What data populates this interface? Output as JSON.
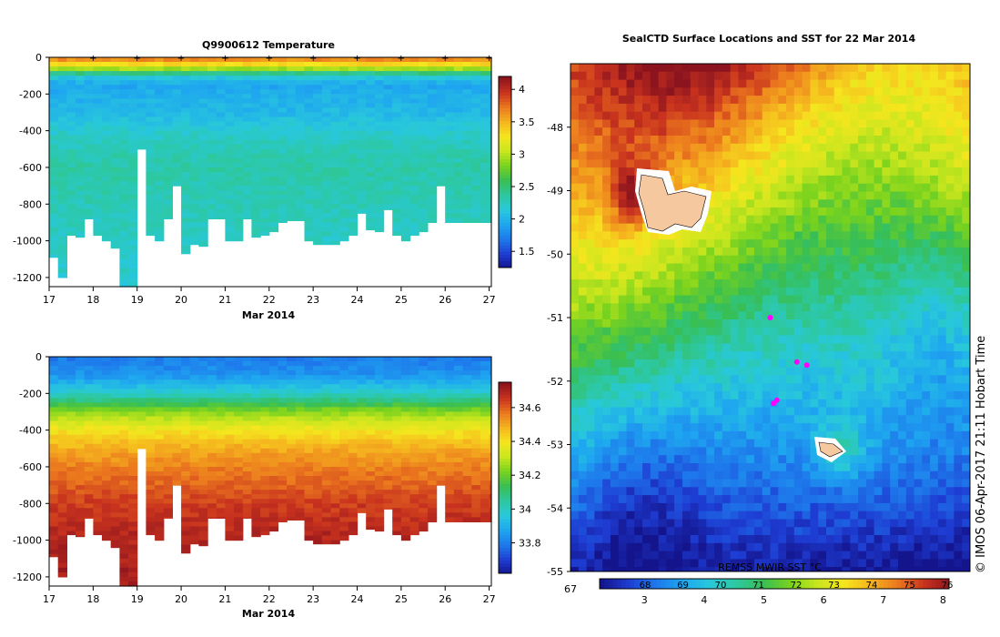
{
  "colors": {
    "cmap": [
      "#14148c",
      "#1e3cd2",
      "#1e78eb",
      "#1ea5f0",
      "#28c8dc",
      "#2dc8a0",
      "#37be55",
      "#78d21e",
      "#c8e61e",
      "#f5e61e",
      "#f5b41e",
      "#eb781e",
      "#c8321e",
      "#8c141e"
    ],
    "land": "#f5c8a0",
    "track": "#ff00ff"
  },
  "chart_data": [
    {
      "type": "heatmap",
      "title": "Q9900612  Temperature",
      "xlabel": "Mar 2014",
      "ylabel": "",
      "x_ticks": [
        "17",
        "18",
        "19",
        "20",
        "21",
        "22",
        "23",
        "24",
        "25",
        "26",
        "27"
      ],
      "xlim": [
        17,
        27.05
      ],
      "y_ticks": [
        "0",
        "-200",
        "-400",
        "-600",
        "-800",
        "-1000",
        "-1200"
      ],
      "ylim": [
        -1250,
        0
      ],
      "colorbar": {
        "min": 1.25,
        "max": 4.2,
        "ticks": [
          "1.5",
          "2",
          "2.5",
          "3",
          "3.5",
          "4"
        ],
        "tick_values": [
          1.5,
          2,
          2.5,
          3,
          3.5,
          4
        ]
      },
      "profile_day": [
        17.0,
        17.2,
        17.4,
        17.6,
        17.8,
        18.0,
        18.2,
        18.4,
        18.6,
        18.8,
        19.0,
        19.2,
        19.4,
        19.6,
        19.8,
        20.0,
        20.2,
        20.4,
        20.6,
        20.8,
        21.0,
        21.2,
        21.4,
        21.6,
        21.8,
        22.0,
        22.2,
        22.4,
        22.6,
        22.8,
        23.0,
        23.2,
        23.4,
        23.6,
        23.8,
        24.0,
        24.2,
        24.4,
        24.6,
        24.8,
        25.0,
        25.2,
        25.4,
        25.6,
        25.8,
        26.0,
        26.2,
        26.4,
        26.6,
        26.8,
        27.0
      ],
      "profile_max_depth": [
        1090,
        1200,
        970,
        980,
        880,
        970,
        1000,
        1040,
        1250,
        1250,
        500,
        970,
        1000,
        880,
        700,
        1070,
        1020,
        1030,
        880,
        880,
        1000,
        1000,
        880,
        980,
        970,
        950,
        900,
        890,
        890,
        1000,
        1020,
        1020,
        1020,
        1000,
        970,
        850,
        940,
        950,
        830,
        970,
        1000,
        970,
        950,
        900,
        700,
        900,
        900,
        900,
        900,
        900,
        900
      ],
      "surface_markers": [
        18,
        19,
        20,
        21,
        22,
        23,
        24,
        25,
        26,
        27
      ],
      "profile_levels": {
        "depth": [
          0,
          50,
          100,
          150,
          200,
          300,
          400,
          500,
          600,
          800,
          1000,
          1250
        ],
        "value": [
          3.8,
          3.2,
          2.2,
          1.95,
          2.0,
          2.05,
          2.2,
          2.3,
          2.35,
          2.3,
          2.25,
          2.2
        ]
      }
    },
    {
      "type": "heatmap",
      "title": "",
      "xlabel": "Mar 2014",
      "ylabel": "",
      "x_ticks": [
        "17",
        "18",
        "19",
        "20",
        "21",
        "22",
        "23",
        "24",
        "25",
        "26",
        "27"
      ],
      "xlim": [
        17,
        27.05
      ],
      "y_ticks": [
        "0",
        "-200",
        "-400",
        "-600",
        "-800",
        "-1000",
        "-1200"
      ],
      "ylim": [
        -1250,
        0
      ],
      "colorbar": {
        "min": 33.62,
        "max": 34.75,
        "ticks": [
          "33.8",
          "34",
          "34.2",
          "34.4",
          "34.6"
        ],
        "tick_values": [
          33.8,
          34.0,
          34.2,
          34.4,
          34.6
        ]
      },
      "profile_levels": {
        "depth": [
          0,
          100,
          200,
          300,
          400,
          500,
          600,
          800,
          1000,
          1250
        ],
        "value": [
          33.8,
          33.85,
          34.0,
          34.25,
          34.4,
          34.5,
          34.56,
          34.65,
          34.7,
          34.72
        ]
      }
    },
    {
      "type": "heatmap",
      "title": "SealCTD Surface Locations and SST for 22 Mar 2014",
      "xlabel": "",
      "ylabel": "",
      "xlim": [
        67.0,
        73.0
      ],
      "ylim": [
        -55.0,
        -47.0
      ],
      "y_ticks": [
        "-48",
        "-49",
        "-50",
        "-51",
        "-52",
        "-53",
        "-54",
        "-55"
      ],
      "x_tick_first": "67",
      "colorbar": {
        "label": "REMSS MWIR SST °C",
        "min": 2.25,
        "max": 8.1,
        "ticks": [
          "3",
          "4",
          "5",
          "6",
          "7",
          "8"
        ],
        "tick_values": [
          3,
          4,
          5,
          6,
          7,
          8
        ],
        "overlay_ticks": [
          "68",
          "69",
          "70",
          "71",
          "72",
          "73",
          "74",
          "75",
          "76"
        ]
      },
      "track_points": [
        {
          "lon": 70.0,
          "lat": -51.0
        },
        {
          "lon": 70.4,
          "lat": -51.7
        },
        {
          "lon": 70.55,
          "lat": -51.75
        },
        {
          "lon": 70.1,
          "lat": -52.3
        },
        {
          "lon": 70.05,
          "lat": -52.35
        }
      ]
    }
  ],
  "watermark": "© IMOS 06-Apr-2017 21:11 Hobart Time"
}
